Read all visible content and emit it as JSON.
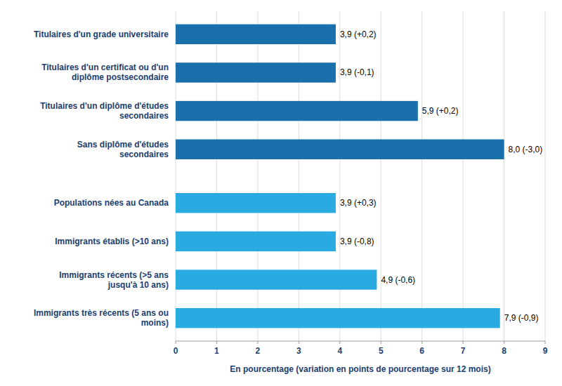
{
  "chart_data": {
    "type": "bar",
    "orientation": "horizontal",
    "categories": [
      "Titulaires d'un grade universitaire",
      "Titulaires d'un certificat ou d'un\ndiplôme postsecondaire",
      "Titulaires d'un diplôme d'études\nsecondaires",
      "Sans diplôme d'études\nsecondaires",
      "Populations nées au Canada",
      "Immigrants établis (>10 ans)",
      "Immigrants récents (>5 ans\njusqu'à 10 ans)",
      "Immigrants très récents (5 ans ou\nmoins)"
    ],
    "values": [
      3.9,
      3.9,
      5.9,
      8.0,
      3.9,
      3.9,
      4.9,
      7.9
    ],
    "value_labels": [
      "3,9 (+0,2)",
      "3,9 (-0,1)",
      "5,9 (+0,2)",
      "8,0 (-3,0)",
      "3,9 (+0,3)",
      "3,9 (-0,8)",
      "4,9 (-0,6)",
      "7,9 (-0,9)"
    ],
    "colors": [
      "#1a70aa",
      "#1a70aa",
      "#1a70aa",
      "#1a70aa",
      "#29abe2",
      "#29abe2",
      "#29abe2",
      "#29abe2"
    ],
    "xlabel": "En pourcentage (variation en points de pourcentage sur 12 mois)",
    "xlim": [
      0,
      9
    ],
    "xticks": [
      0,
      1,
      2,
      3,
      4,
      5,
      6,
      7,
      8,
      9
    ],
    "grid": true,
    "data_labels": true
  }
}
